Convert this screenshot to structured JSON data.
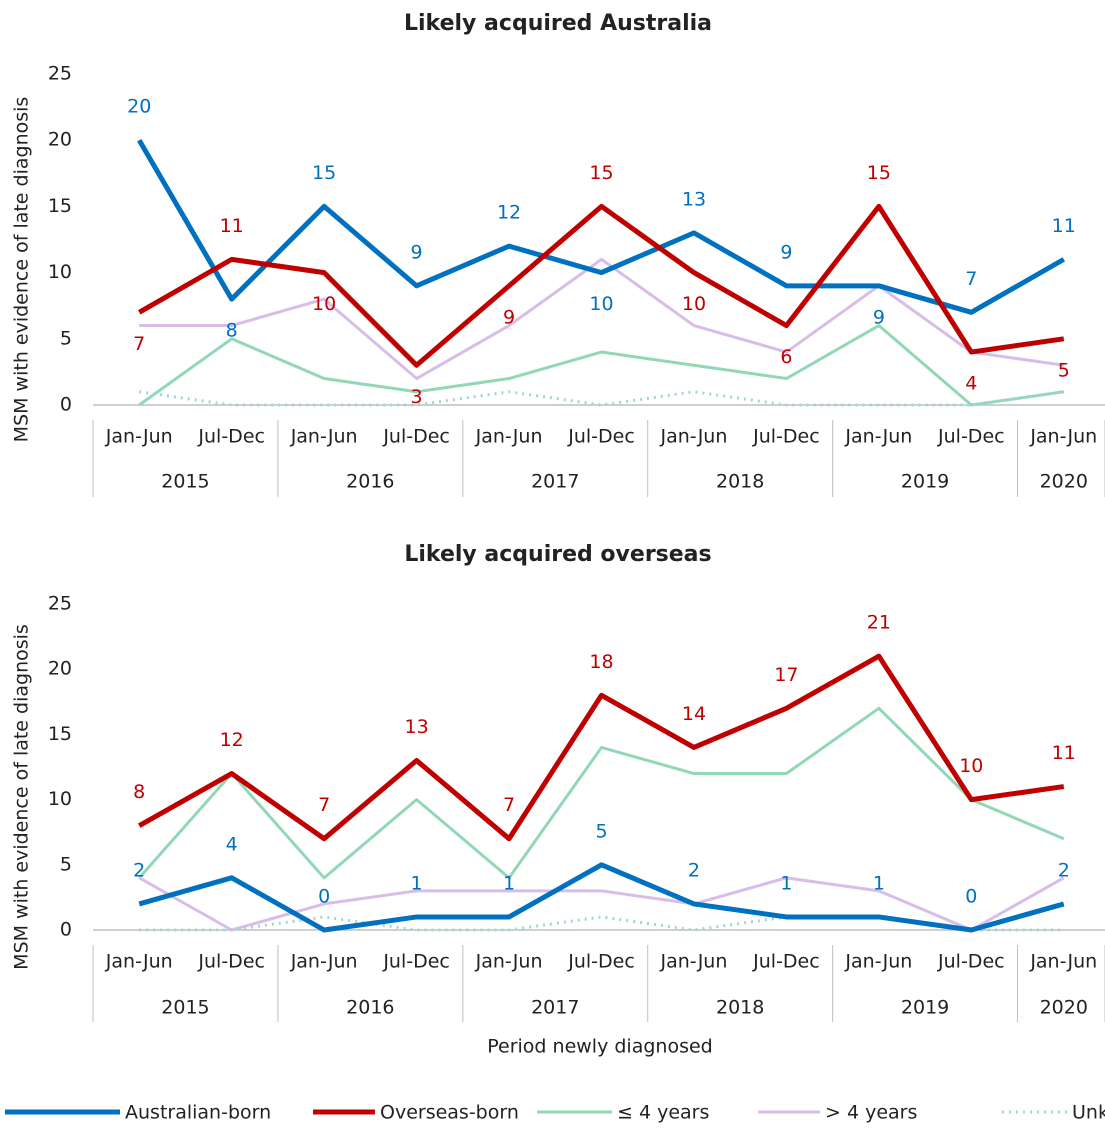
{
  "chart_data": [
    {
      "type": "line",
      "title": "Likely acquired Australia",
      "y_label": "MSM with evidence of late diagnosis",
      "categories": [
        "Jan-Jun",
        "Jul-Dec",
        "Jan-Jun",
        "Jul-Dec",
        "Jan-Jun",
        "Jul-Dec",
        "Jan-Jun",
        "Jul-Dec",
        "Jan-Jun",
        "Jul-Dec",
        "Jan-Jun"
      ],
      "year_labels": [
        "2015",
        null,
        "2016",
        null,
        "2017",
        null,
        "2018",
        null,
        "2019",
        null,
        "2020"
      ],
      "ylim": [
        0,
        25
      ],
      "yticks": [
        0,
        5,
        10,
        15,
        20,
        25
      ],
      "grid": false,
      "series": [
        {
          "name": "Australian-born",
          "color": "#0070c0",
          "width": 5,
          "dash": "solid",
          "show_labels": true,
          "values": [
            20,
            8,
            15,
            9,
            12,
            10,
            13,
            9,
            9,
            7,
            11
          ]
        },
        {
          "name": "Overseas-born",
          "color": "#c00000",
          "width": 5,
          "dash": "solid",
          "show_labels": true,
          "values": [
            7,
            11,
            10,
            3,
            9,
            15,
            10,
            6,
            15,
            4,
            5
          ]
        },
        {
          "name": "≤ 4 years",
          "color": "#92d8b4",
          "width": 3,
          "dash": "solid",
          "show_labels": false,
          "values": [
            0,
            5,
            2,
            1,
            2,
            4,
            3,
            2,
            6,
            0,
            1
          ]
        },
        {
          "name": "> 4 years",
          "color": "#d8bde8",
          "width": 3,
          "dash": "solid",
          "show_labels": false,
          "values": [
            6,
            6,
            8,
            2,
            6,
            11,
            6,
            4,
            9,
            4,
            3
          ]
        },
        {
          "name": "Unknown",
          "color": "#9fd6d6",
          "width": 3,
          "dash": "dotted",
          "show_labels": false,
          "values": [
            1,
            0,
            0,
            0,
            1,
            0,
            1,
            0,
            0,
            0,
            1
          ]
        }
      ]
    },
    {
      "type": "line",
      "title": "Likely acquired overseas",
      "y_label": "MSM with evidence of late diagnosis",
      "x_label": "Period newly diagnosed",
      "categories": [
        "Jan-Jun",
        "Jul-Dec",
        "Jan-Jun",
        "Jul-Dec",
        "Jan-Jun",
        "Jul-Dec",
        "Jan-Jun",
        "Jul-Dec",
        "Jan-Jun",
        "Jul-Dec",
        "Jan-Jun"
      ],
      "year_labels": [
        "2015",
        null,
        "2016",
        null,
        "2017",
        null,
        "2018",
        null,
        "2019",
        null,
        "2020"
      ],
      "ylim": [
        0,
        25
      ],
      "yticks": [
        0,
        5,
        10,
        15,
        20,
        25
      ],
      "grid": false,
      "series": [
        {
          "name": "Australian-born",
          "color": "#0070c0",
          "width": 5,
          "dash": "solid",
          "show_labels": true,
          "values": [
            2,
            4,
            0,
            1,
            1,
            5,
            2,
            1,
            1,
            0,
            2
          ]
        },
        {
          "name": "Overseas-born",
          "color": "#c00000",
          "width": 5,
          "dash": "solid",
          "show_labels": true,
          "values": [
            8,
            12,
            7,
            13,
            7,
            18,
            14,
            17,
            21,
            10,
            11
          ]
        },
        {
          "name": "≤ 4 years",
          "color": "#92d8b4",
          "width": 3,
          "dash": "solid",
          "show_labels": false,
          "values": [
            4,
            12,
            4,
            10,
            4,
            14,
            12,
            12,
            17,
            10,
            7
          ]
        },
        {
          "name": "> 4 years",
          "color": "#d8bde8",
          "width": 3,
          "dash": "solid",
          "show_labels": false,
          "values": [
            4,
            0,
            2,
            3,
            3,
            3,
            2,
            4,
            3,
            0,
            4
          ]
        },
        {
          "name": "Unknown",
          "color": "#9fd6d6",
          "width": 3,
          "dash": "dotted",
          "show_labels": false,
          "values": [
            0,
            0,
            1,
            0,
            0,
            1,
            0,
            1,
            1,
            0,
            0
          ]
        }
      ]
    }
  ]
}
